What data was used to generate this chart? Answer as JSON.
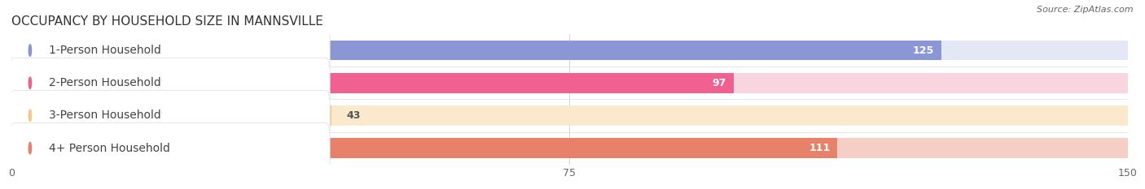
{
  "title": "OCCUPANCY BY HOUSEHOLD SIZE IN MANNSVILLE",
  "source": "Source: ZipAtlas.com",
  "categories": [
    "1-Person Household",
    "2-Person Household",
    "3-Person Household",
    "4+ Person Household"
  ],
  "values": [
    125,
    97,
    43,
    111
  ],
  "bar_colors": [
    "#8B96D4",
    "#F06090",
    "#F5C98A",
    "#E8816A"
  ],
  "bar_bg_colors": [
    "#E4E7F5",
    "#F9D5E0",
    "#FBE9CE",
    "#F5CEC5"
  ],
  "xlim": [
    0,
    150
  ],
  "xticks": [
    0,
    75,
    150
  ],
  "title_fontsize": 11,
  "label_fontsize": 10,
  "value_fontsize": 9,
  "source_fontsize": 8,
  "background_color": "#ffffff",
  "label_text_color": "#444444"
}
